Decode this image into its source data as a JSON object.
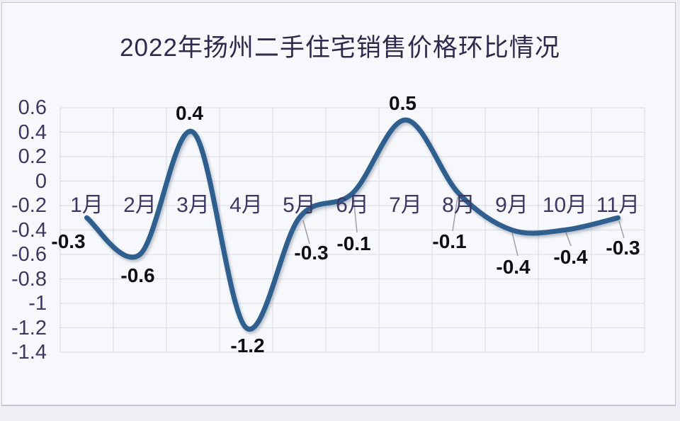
{
  "chart_data": {
    "type": "line",
    "title": "2022年扬州二手住宅销售价格环比情况",
    "categories": [
      "1月",
      "2月",
      "3月",
      "4月",
      "5月",
      "6月",
      "7月",
      "8月",
      "9月",
      "10月",
      "11月"
    ],
    "values": [
      -0.3,
      -0.6,
      0.4,
      -1.2,
      -0.3,
      -0.1,
      0.5,
      -0.1,
      -0.4,
      -0.4,
      -0.3
    ],
    "point_labels": [
      "-0.3",
      "-0.6",
      "0.4",
      "-1.2",
      "-0.3",
      "-0.1",
      "0.5",
      "-0.1",
      "-0.4",
      "-0.4",
      "-0.3"
    ],
    "y_ticks": [
      "0.6",
      "0.4",
      "0.2",
      "0",
      "-0.2",
      "-0.4",
      "-0.6",
      "-0.8",
      "-1",
      "-1.2",
      "-1.4"
    ],
    "ylim": [
      -1.4,
      0.6
    ],
    "xlabel": "",
    "ylabel": "",
    "grid": true,
    "smooth": true,
    "legend": "none",
    "colors": {
      "line": "#2e5f8e",
      "grid": "#d9dae2",
      "leader": "#9fa0a8",
      "title_text": "#2f2a4d",
      "axis_text": "#3c3763",
      "data_label_text": "#0e0e13",
      "frame_background": "#f7f8fb",
      "page_background": "#edeff4",
      "frame_border": "#c2c7d3"
    }
  }
}
